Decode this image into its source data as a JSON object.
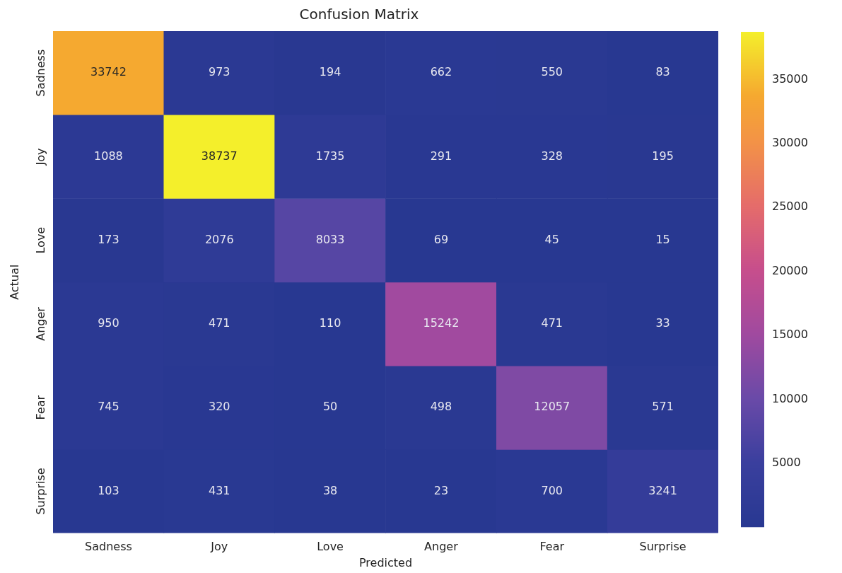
{
  "chart_data": {
    "type": "heatmap",
    "title": "Confusion Matrix",
    "xlabel": "Predicted",
    "ylabel": "Actual",
    "categories": [
      "Sadness",
      "Joy",
      "Love",
      "Anger",
      "Fear",
      "Surprise"
    ],
    "y_categories": [
      "Sadness",
      "Joy",
      "Love",
      "Anger",
      "Fear",
      "Surprise"
    ],
    "cells": [
      [
        33742,
        973,
        194,
        662,
        550,
        83
      ],
      [
        1088,
        38737,
        1735,
        291,
        328,
        195
      ],
      [
        173,
        2076,
        8033,
        69,
        45,
        15
      ],
      [
        950,
        471,
        110,
        15242,
        471,
        33
      ],
      [
        745,
        320,
        50,
        498,
        12057,
        571
      ],
      [
        103,
        431,
        38,
        23,
        700,
        3241
      ]
    ],
    "clim": [
      15,
      38737
    ],
    "cticks": [
      5000,
      10000,
      15000,
      20000,
      25000,
      30000,
      35000
    ],
    "data_labels": true
  }
}
